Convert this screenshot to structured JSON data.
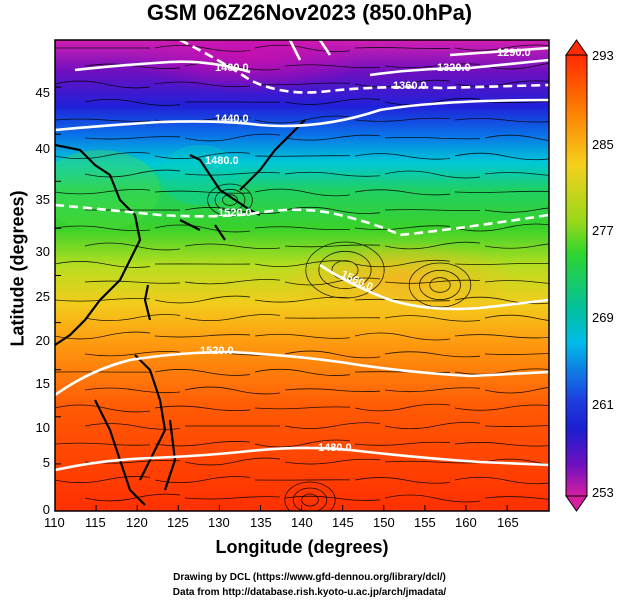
{
  "title": "GSM 06Z26Nov2023 (850.0hPa)",
  "xlabel": "Longitude (degrees)",
  "ylabel": "Latitude  (degrees)",
  "credit_line1": "Drawing by DCL (https://www.gfd-dennou.org/library/dcl/)",
  "credit_line2": "Data from http://database.rish.kyoto-u.ac.jp/arch/jmadata/",
  "x_ticks": [
    "110",
    "115",
    "120",
    "125",
    "130",
    "135",
    "140",
    "145",
    "150",
    "155",
    "160",
    "165"
  ],
  "y_ticks": [
    "0",
    "5",
    "10",
    "15",
    "20",
    "25",
    "30",
    "35",
    "40",
    "45"
  ],
  "colorbar_ticks": [
    "293",
    "285",
    "277",
    "269",
    "261",
    "253"
  ],
  "contour_labels": [
    "1400.0",
    "1320.0",
    "1290.0",
    "1360.0",
    "1440.0",
    "1480.0",
    "1520.0",
    "1560.0",
    "1520.0",
    "1480.0"
  ],
  "chart_data": {
    "type": "heatmap",
    "title": "GSM 06Z26Nov2023 (850.0hPa)",
    "xlabel": "Longitude (degrees)",
    "ylabel": "Latitude  (degrees)",
    "xlim": [
      110,
      170
    ],
    "ylim": [
      0,
      50
    ],
    "colorbar_range": [
      253,
      293
    ],
    "colormap": [
      "#d61ea0",
      "#1d1dd0",
      "#00bde8",
      "#2fd52f",
      "#f4d11c",
      "#ff2a00"
    ],
    "contour_values": [
      1290,
      1320,
      1360,
      1400,
      1440,
      1480,
      1520,
      1560
    ]
  }
}
